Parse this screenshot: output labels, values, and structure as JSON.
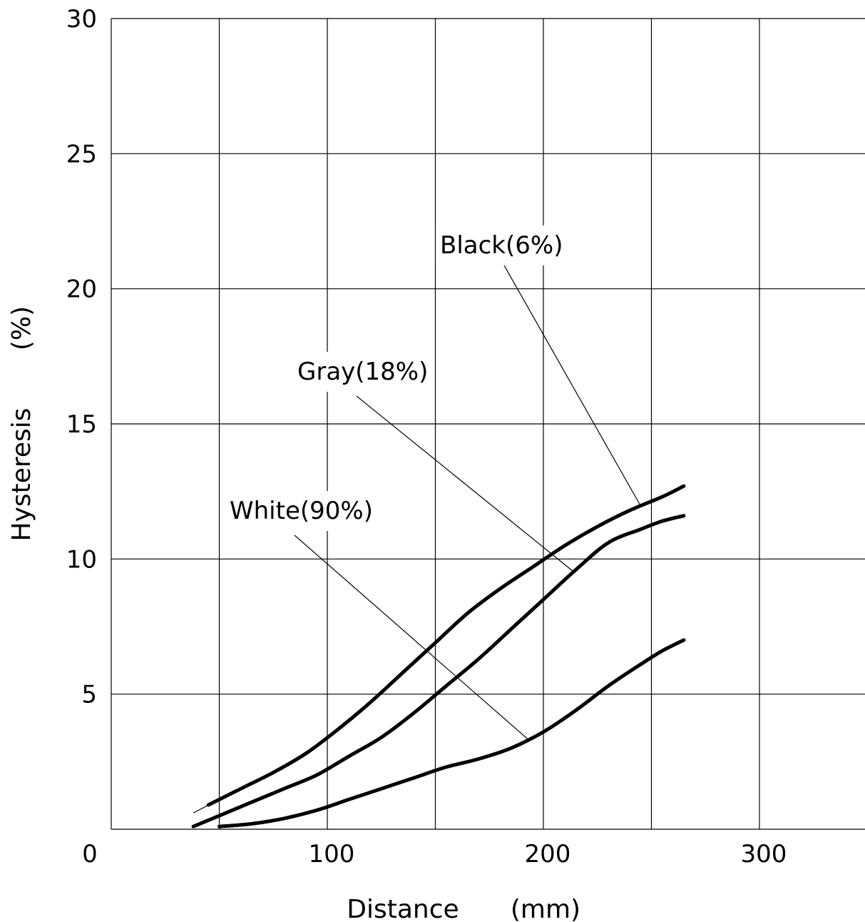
{
  "chart_data": {
    "type": "line",
    "xlabel": "Distance",
    "xunit": "(mm)",
    "ylabel": "Hysteresis",
    "yunit": "(%)",
    "xlim": [
      0,
      350
    ],
    "ylim": [
      0,
      30
    ],
    "x_ticks": [
      0,
      100,
      200,
      300
    ],
    "x_tick_labels": [
      "0",
      "100",
      "200",
      "300"
    ],
    "y_ticks": [
      5,
      10,
      15,
      20,
      25,
      30
    ],
    "y_tick_labels": [
      "5",
      "10",
      "15",
      "20",
      "25",
      "30"
    ],
    "grid": true,
    "series": [
      {
        "name": "Black(6%)",
        "x": [
          45,
          60,
          75,
          90,
          105,
          120,
          135,
          150,
          165,
          180,
          195,
          210,
          225,
          240,
          255,
          265
        ],
        "y": [
          0.9,
          1.5,
          2.1,
          2.8,
          3.7,
          4.7,
          5.8,
          6.9,
          8.0,
          8.9,
          9.7,
          10.5,
          11.2,
          11.8,
          12.3,
          12.7
        ]
      },
      {
        "name": "Gray(18%)",
        "x": [
          38,
          50,
          65,
          80,
          95,
          110,
          125,
          140,
          155,
          170,
          185,
          200,
          215,
          230,
          245,
          255,
          265
        ],
        "y": [
          0.1,
          0.5,
          1.0,
          1.5,
          2.0,
          2.7,
          3.4,
          4.3,
          5.3,
          6.3,
          7.4,
          8.5,
          9.6,
          10.6,
          11.1,
          11.4,
          11.6
        ]
      },
      {
        "name": "White(90%)",
        "x": [
          50,
          65,
          80,
          95,
          110,
          125,
          140,
          155,
          170,
          185,
          200,
          215,
          230,
          245,
          255,
          265
        ],
        "y": [
          0.1,
          0.2,
          0.4,
          0.7,
          1.1,
          1.5,
          1.9,
          2.3,
          2.6,
          3.0,
          3.6,
          4.4,
          5.3,
          6.1,
          6.6,
          7.0
        ]
      }
    ]
  }
}
